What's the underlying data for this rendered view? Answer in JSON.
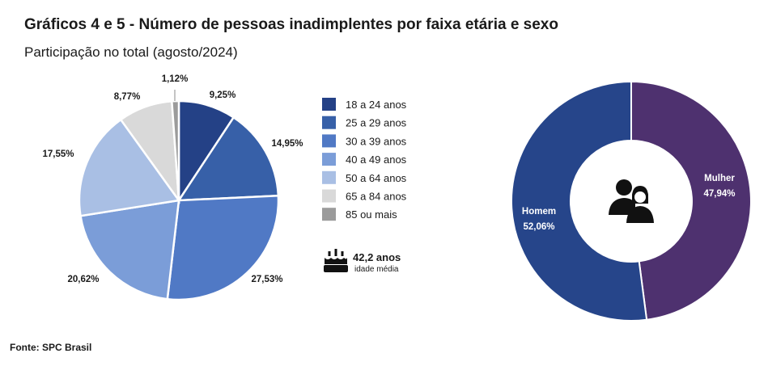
{
  "title": "Gráficos 4 e 5 - Número de pessoas inadimplentes por faixa etária e sexo",
  "subtitle": "Participação no total (agosto/2024)",
  "source": "Fonte: SPC Brasil",
  "average_age": {
    "value": "42,2 anos",
    "caption": "idade média",
    "icon": "birthday-cake-icon"
  },
  "center_icon": "people-icon",
  "chart_data": [
    {
      "type": "pie",
      "title": "",
      "categories": [
        "18 a 24 anos",
        "25 a 29 anos",
        "30 a 39 anos",
        "40 a 49 anos",
        "50 a 64 anos",
        "65 a 84 anos",
        "85 ou mais"
      ],
      "values": [
        9.25,
        14.95,
        27.53,
        20.62,
        17.55,
        8.77,
        1.12
      ],
      "labels": [
        "9,25%",
        "14,95%",
        "27,53%",
        "20,62%",
        "17,55%",
        "8,77%",
        "1,12%"
      ],
      "colors": [
        "#244186",
        "#3760a8",
        "#5079c5",
        "#7b9dd8",
        "#a9bfe4",
        "#d9d9d9",
        "#9b9b9b"
      ],
      "legend": "right"
    },
    {
      "type": "pie",
      "title": "",
      "categories": [
        "Mulher",
        "Homem"
      ],
      "values": [
        47.94,
        52.06
      ],
      "labels": [
        "47,94%",
        "52,06%"
      ],
      "colors": [
        "#4e316f",
        "#26458a"
      ],
      "donut": true
    }
  ]
}
